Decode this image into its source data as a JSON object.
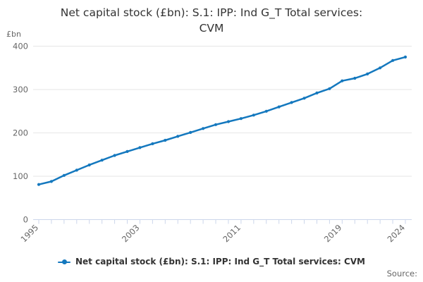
{
  "title": "Net capital stock (£bn): S.1: IPP: Ind G_T Total services:\nCVM",
  "unit_label": "£bn",
  "legend": {
    "label": "Net capital stock (£bn): S.1: IPP: Ind G_T Total services: CVM"
  },
  "source_label": "Source:",
  "colors": {
    "line": "#1478be",
    "grid": "#e6e6e6",
    "axis": "#ccd6eb",
    "tick_label": "#666666",
    "title": "#333333"
  },
  "chart_data": {
    "type": "line",
    "title": "Net capital stock (£bn): S.1: IPP: Ind G_T Total services: CVM",
    "xlabel": "",
    "ylabel": "£bn",
    "ylim": [
      0,
      400
    ],
    "grid": true,
    "legend_position": "bottom-center",
    "x": [
      1995,
      1996,
      1997,
      1998,
      1999,
      2000,
      2001,
      2002,
      2003,
      2004,
      2005,
      2006,
      2007,
      2008,
      2009,
      2010,
      2011,
      2012,
      2013,
      2014,
      2015,
      2016,
      2017,
      2018,
      2019,
      2020,
      2021,
      2022,
      2023,
      2024
    ],
    "series": [
      {
        "name": "Net capital stock (£bn): S.1: IPP: Ind G_T Total services: CVM",
        "values": [
          81,
          88,
          102,
          114,
          126,
          137,
          148,
          157,
          166,
          175,
          183,
          192,
          201,
          210,
          219,
          226,
          233,
          241,
          250,
          260,
          270,
          280,
          292,
          302,
          320,
          326,
          336,
          350,
          367,
          375
        ]
      }
    ],
    "yticks": [
      0,
      100,
      200,
      300,
      400
    ],
    "xticks_labeled": [
      "1995",
      "2003",
      "2011",
      "2019",
      "2024"
    ],
    "xtick_label_indices": [
      0,
      8,
      16,
      24,
      29
    ]
  }
}
